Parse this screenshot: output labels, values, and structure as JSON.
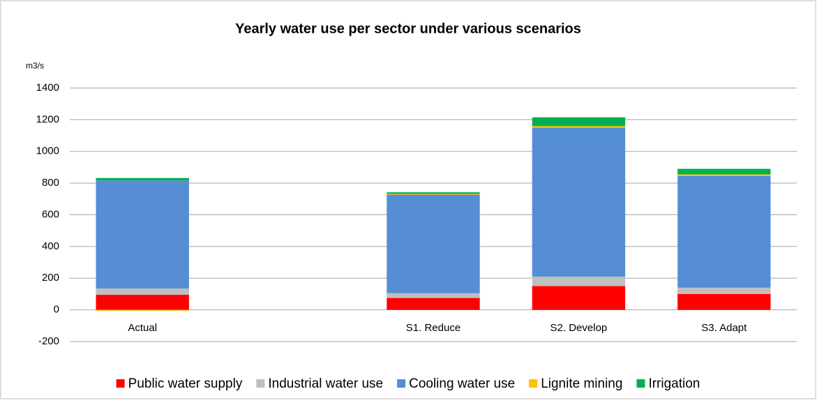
{
  "chart_data": {
    "type": "stacked_bar",
    "title": "Yearly water use per sector under various scenarios",
    "y_label": "m3/s",
    "categories": [
      "Actual",
      null,
      "S1. Reduce",
      "S2. Develop",
      "S3. Adapt"
    ],
    "series": [
      {
        "name": "Public water supply",
        "color": "#ff0000",
        "values": [
          95,
          null,
          75,
          150,
          100
        ]
      },
      {
        "name": "Industrial water use",
        "color": "#bfbfbf",
        "values": [
          40,
          null,
          30,
          60,
          40
        ]
      },
      {
        "name": "Cooling water use",
        "color": "#558ed5",
        "values": [
          682,
          null,
          622,
          940,
          705
        ]
      },
      {
        "name": "Lignite mining",
        "color": "#ffc000",
        "values": [
          -5,
          null,
          5,
          10,
          10
        ]
      },
      {
        "name": "Irrigation",
        "color": "#00b050",
        "values": [
          15,
          null,
          10,
          55,
          35
        ]
      }
    ],
    "ylim": [
      -200,
      1400
    ],
    "yticks": [
      -200,
      0,
      200,
      400,
      600,
      800,
      1000,
      1200,
      1400
    ],
    "grid": true,
    "legend": "bottom"
  }
}
